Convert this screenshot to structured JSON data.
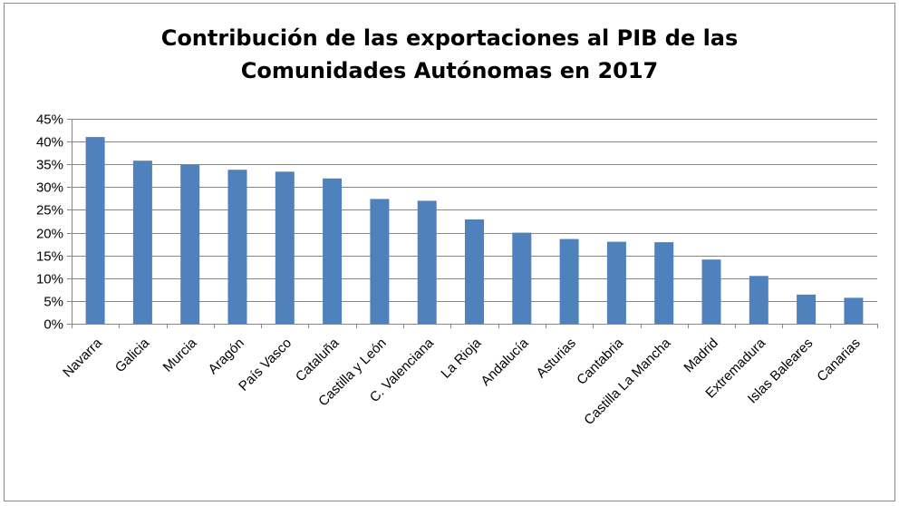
{
  "chart_data": {
    "type": "bar",
    "title_line1": "Contribución de las exportaciones al PIB de las",
    "title_line2": "Comunidades Autónomas en 2017",
    "categories": [
      "Navarra",
      "Galicia",
      "Murcia",
      "Aragón",
      "País Vasco",
      "Cataluña",
      "Castilla y León",
      "C. Valenciana",
      "La Rioja",
      "Andalucía",
      "Asturias",
      "Cantabria",
      "Castilla La Mancha",
      "Madrid",
      "Extremadura",
      "Islas Baleares",
      "Canarias"
    ],
    "values": [
      41,
      35.8,
      34.9,
      33.8,
      33.4,
      31.9,
      27.4,
      27,
      22.9,
      20,
      18.6,
      18,
      17.9,
      14.1,
      10.5,
      6.4,
      5.7
    ],
    "yticks": [
      "0%",
      "5%",
      "10%",
      "15%",
      "20%",
      "25%",
      "30%",
      "35%",
      "40%",
      "45%"
    ],
    "ylim": [
      0,
      45
    ],
    "xlabel": "",
    "ylabel": "",
    "grid": true,
    "legend": false,
    "bar_color": "#4f81bd"
  }
}
